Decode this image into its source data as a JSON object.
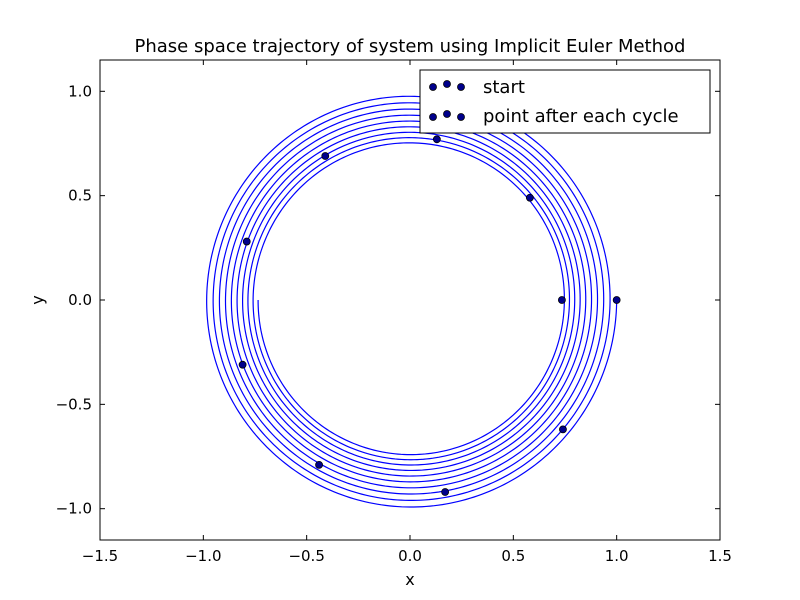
{
  "chart_data": {
    "type": "scatter",
    "title": "Phase space trajectory of system using Implicit Euler Method",
    "xlabel": "x",
    "ylabel": "y",
    "xlim": [
      -1.5,
      1.5
    ],
    "ylim": [
      -1.15,
      1.15
    ],
    "xticks": [
      -1.5,
      -1.0,
      -0.5,
      0.0,
      0.5,
      1.0,
      1.5
    ],
    "xtick_labels": [
      "−1.5",
      "−1.0",
      "−0.5",
      "0.0",
      "0.5",
      "1.0",
      "1.5"
    ],
    "yticks": [
      -1.0,
      -0.5,
      0.0,
      0.5,
      1.0
    ],
    "ytick_labels": [
      "−1.0",
      "−0.5",
      "0.0",
      "0.5",
      "1.0"
    ],
    "grid": false,
    "legend_position": "top-right",
    "trajectory": {
      "color": "#0000ff",
      "start_radius": 1.0,
      "end_radius": 0.735,
      "turns": 9.5
    },
    "series": [
      {
        "name": "start",
        "marker_color": "#00008b",
        "points": [
          [
            1.0,
            0.0
          ]
        ]
      },
      {
        "name": "point after each cycle",
        "marker_color": "#00008b",
        "points": [
          [
            0.735,
            0.0
          ],
          [
            0.58,
            0.49
          ],
          [
            0.13,
            0.77
          ],
          [
            -0.41,
            0.69
          ],
          [
            -0.79,
            0.28
          ],
          [
            -0.81,
            -0.31
          ],
          [
            -0.44,
            -0.79
          ],
          [
            0.17,
            -0.92
          ],
          [
            0.74,
            -0.62
          ]
        ]
      }
    ]
  }
}
